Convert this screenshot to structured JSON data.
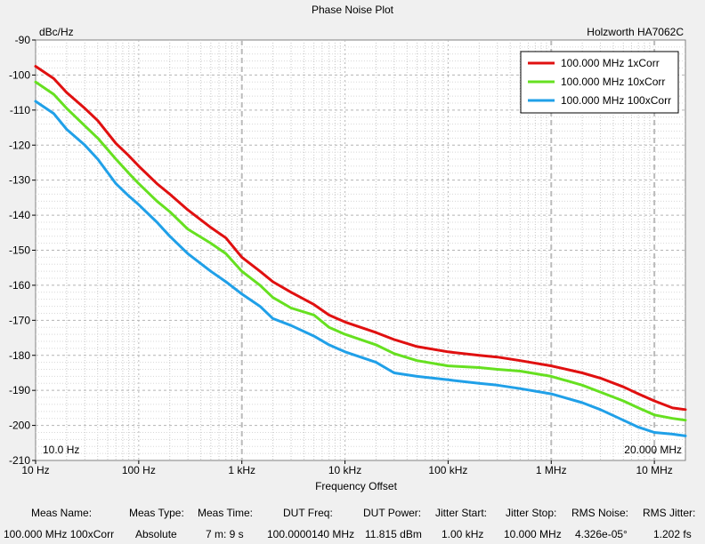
{
  "chart_data": {
    "type": "line",
    "title": "Phase Noise Plot",
    "instrument": "Holzworth HA7062C",
    "xlabel": "Frequency Offset",
    "ylabel": "dBc/Hz",
    "x_scale": "log",
    "xlim": [
      10,
      20000000
    ],
    "ylim": [
      -210,
      -90
    ],
    "y_ticks": [
      -90,
      -100,
      -110,
      -120,
      -130,
      -140,
      -150,
      -160,
      -170,
      -180,
      -190,
      -200,
      -210
    ],
    "x_ticks": [
      {
        "value": 10,
        "label": "10 Hz"
      },
      {
        "value": 100,
        "label": "100 Hz"
      },
      {
        "value": 1000,
        "label": "1 kHz"
      },
      {
        "value": 10000,
        "label": "10 kHz"
      },
      {
        "value": 100000,
        "label": "100 kHz"
      },
      {
        "value": 1000000,
        "label": "1 MHz"
      },
      {
        "value": 10000000,
        "label": "10 MHz"
      }
    ],
    "start_marker": "10.0 Hz",
    "stop_marker": "20.000 MHz",
    "grid": true,
    "legend_position": "top-right",
    "series": [
      {
        "name": "100.000 MHz 1xCorr",
        "color": "#e01010",
        "x": [
          10,
          15,
          20,
          30,
          40,
          60,
          80,
          100,
          150,
          200,
          300,
          500,
          700,
          1000,
          1500,
          2000,
          3000,
          5000,
          7000,
          10000,
          20000,
          30000,
          50000,
          100000,
          200000,
          300000,
          500000,
          1000000,
          2000000,
          3000000,
          5000000,
          7000000,
          10000000,
          15000000,
          20000000
        ],
        "values": [
          -97.5,
          -101,
          -105,
          -109.5,
          -113,
          -119.5,
          -123,
          -126,
          -131,
          -134,
          -138.5,
          -143.5,
          -146.5,
          -152,
          -156,
          -159,
          -162,
          -165.5,
          -168.5,
          -170.5,
          -173.5,
          -175.5,
          -177.5,
          -179,
          -180,
          -180.5,
          -181.5,
          -183,
          -185,
          -186.5,
          -189,
          -191,
          -193,
          -195,
          -195.5
        ]
      },
      {
        "name": "100.000 MHz 10xCorr",
        "color": "#66e020",
        "x": [
          10,
          15,
          20,
          30,
          40,
          60,
          80,
          100,
          150,
          200,
          300,
          500,
          700,
          1000,
          1500,
          2000,
          3000,
          5000,
          7000,
          10000,
          20000,
          30000,
          50000,
          100000,
          200000,
          300000,
          500000,
          1000000,
          2000000,
          3000000,
          5000000,
          7000000,
          10000000,
          15000000,
          20000000
        ],
        "values": [
          -102,
          -105.5,
          -109.5,
          -114.5,
          -118,
          -124,
          -128,
          -131,
          -136,
          -139,
          -144,
          -148,
          -151,
          -156,
          -160,
          -163.5,
          -166.5,
          -168.5,
          -172,
          -174,
          -177,
          -179.5,
          -181.5,
          -183,
          -183.5,
          -184,
          -184.5,
          -186,
          -188.5,
          -190.5,
          -193,
          -195,
          -197,
          -198,
          -198.5
        ]
      },
      {
        "name": "100.000 MHz 100xCorr",
        "color": "#20a0e8",
        "x": [
          10,
          15,
          20,
          30,
          40,
          60,
          80,
          100,
          150,
          200,
          300,
          500,
          700,
          1000,
          1500,
          2000,
          3000,
          5000,
          7000,
          10000,
          20000,
          30000,
          50000,
          100000,
          200000,
          300000,
          500000,
          1000000,
          2000000,
          3000000,
          5000000,
          7000000,
          10000000,
          15000000,
          20000000
        ],
        "values": [
          -107.5,
          -111,
          -115.5,
          -120,
          -124,
          -131,
          -134.5,
          -137,
          -142,
          -146,
          -151,
          -156,
          -159,
          -162.5,
          -166,
          -169.5,
          -171.5,
          -174.5,
          -177,
          -179,
          -182,
          -185,
          -186,
          -187,
          -188,
          -188.5,
          -189.5,
          -191,
          -193.5,
          -195.5,
          -198.5,
          -200.5,
          -202,
          -202.5,
          -203
        ]
      }
    ]
  },
  "measurements": {
    "headers": [
      "Meas Name:",
      "Meas Type:",
      "Meas Time:",
      "DUT Freq:",
      "DUT Power:",
      "Jitter Start:",
      "Jitter Stop:",
      "RMS Noise:",
      "RMS Jitter:"
    ],
    "values": [
      "100.000 MHz 100xCorr",
      "Absolute",
      "7 m: 9 s",
      "100.0000140 MHz",
      "11.815 dBm",
      "1.00 kHz",
      "10.000 MHz",
      "4.326e-05°",
      "1.202 fs"
    ]
  }
}
